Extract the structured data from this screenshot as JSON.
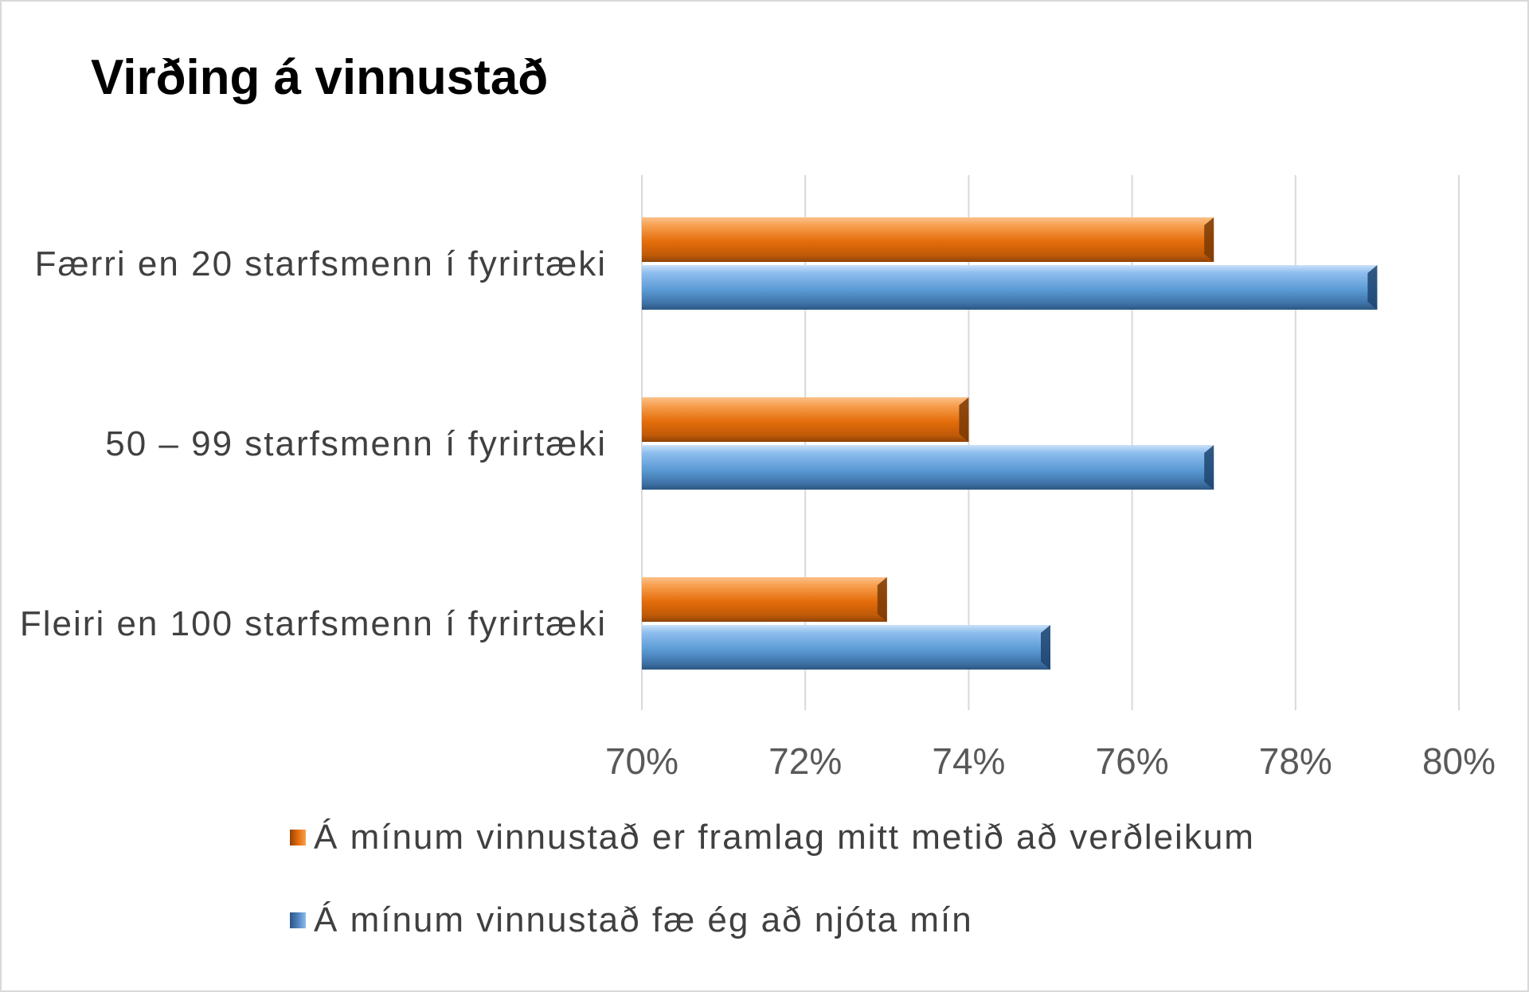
{
  "chart_data": {
    "type": "bar",
    "orientation": "horizontal",
    "title": "Virðing á vinnustað",
    "categories": [
      "Færri en 20 starfsmenn í fyrirtæki",
      "50 – 99 starfsmenn í fyrirtæki",
      "Fleiri en 100 starfsmenn í fyrirtæki"
    ],
    "series": [
      {
        "name": "Á mínum vinnustað er framlag mitt metið að verðleikum",
        "color": "#e46c0a",
        "values": [
          77,
          74,
          73
        ]
      },
      {
        "name": "Á mínum vinnustað fæ ég að njóta mín",
        "color": "#4f81bd",
        "values": [
          79,
          77,
          75
        ]
      }
    ],
    "xlim": [
      70,
      80
    ],
    "xticks": [
      "70%",
      "72%",
      "74%",
      "76%",
      "78%",
      "80%"
    ],
    "xticks_values": [
      70,
      72,
      74,
      76,
      78,
      80
    ],
    "grid": true,
    "legend_position": "bottom"
  }
}
